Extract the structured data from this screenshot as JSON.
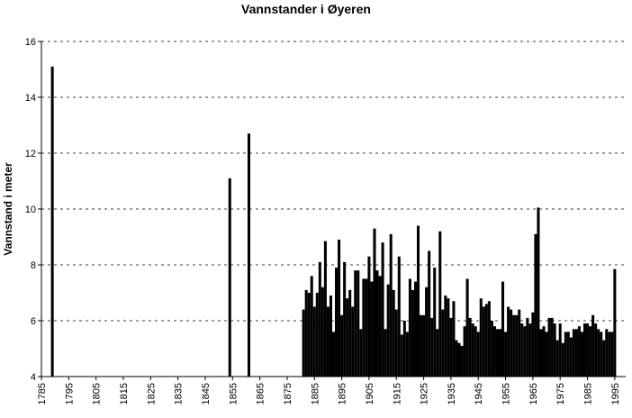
{
  "chart_data": {
    "type": "bar",
    "title": "Vannstander i Øyeren",
    "y_label": "Vannstand i meter",
    "x": [
      1789,
      1854,
      1861,
      1881,
      1882,
      1883,
      1884,
      1885,
      1886,
      1887,
      1888,
      1889,
      1890,
      1891,
      1892,
      1893,
      1894,
      1895,
      1896,
      1897,
      1898,
      1899,
      1900,
      1901,
      1902,
      1903,
      1904,
      1905,
      1906,
      1907,
      1908,
      1909,
      1910,
      1911,
      1912,
      1913,
      1914,
      1915,
      1916,
      1917,
      1918,
      1919,
      1920,
      1921,
      1922,
      1923,
      1924,
      1925,
      1926,
      1927,
      1928,
      1929,
      1930,
      1931,
      1932,
      1933,
      1934,
      1935,
      1936,
      1937,
      1938,
      1939,
      1940,
      1941,
      1942,
      1943,
      1944,
      1945,
      1946,
      1947,
      1948,
      1949,
      1950,
      1951,
      1952,
      1953,
      1954,
      1955,
      1956,
      1957,
      1958,
      1959,
      1960,
      1961,
      1962,
      1963,
      1964,
      1965,
      1966,
      1967,
      1968,
      1969,
      1970,
      1971,
      1972,
      1973,
      1974,
      1975,
      1976,
      1977,
      1978,
      1979,
      1980,
      1981,
      1982,
      1983,
      1984,
      1985,
      1986,
      1987,
      1988,
      1989,
      1990,
      1991,
      1992,
      1993,
      1994,
      1995
    ],
    "values": [
      15.1,
      11.1,
      12.7,
      6.4,
      7.1,
      7.0,
      7.6,
      6.5,
      7.0,
      8.1,
      7.2,
      8.85,
      6.5,
      6.9,
      5.6,
      7.9,
      8.9,
      6.2,
      8.1,
      6.8,
      7.1,
      6.5,
      7.8,
      7.8,
      5.7,
      7.5,
      7.5,
      8.3,
      7.4,
      9.3,
      7.8,
      7.6,
      8.8,
      5.7,
      7.3,
      9.1,
      7.1,
      6.4,
      8.3,
      5.5,
      6.0,
      5.6,
      7.5,
      7.1,
      7.4,
      9.4,
      6.2,
      6.2,
      7.2,
      8.5,
      6.1,
      7.9,
      5.7,
      9.2,
      6.4,
      6.9,
      6.8,
      6.1,
      6.7,
      5.3,
      5.2,
      5.1,
      5.8,
      7.5,
      6.1,
      5.9,
      5.8,
      5.6,
      6.8,
      6.5,
      6.6,
      6.7,
      6.0,
      5.8,
      5.7,
      5.7,
      7.4,
      5.6,
      6.5,
      6.4,
      6.2,
      6.2,
      6.4,
      5.9,
      5.8,
      6.1,
      5.9,
      6.3,
      9.1,
      10.05,
      5.7,
      5.8,
      5.6,
      6.1,
      6.1,
      5.9,
      5.3,
      5.9,
      5.2,
      5.6,
      5.6,
      5.4,
      5.7,
      5.7,
      5.8,
      5.6,
      5.9,
      5.9,
      5.8,
      6.2,
      5.9,
      5.7,
      5.6,
      5.3,
      5.7,
      5.6,
      5.6,
      7.85
    ],
    "color": "#000000",
    "xlim": [
      1785,
      1999
    ],
    "xticks": [
      1785,
      1795,
      1805,
      1815,
      1825,
      1835,
      1845,
      1855,
      1865,
      1875,
      1885,
      1895,
      1905,
      1915,
      1925,
      1935,
      1945,
      1955,
      1965,
      1975,
      1985,
      1995
    ],
    "ylim": [
      4,
      16
    ],
    "yticks": [
      4,
      6,
      8,
      10,
      12,
      14,
      16
    ],
    "grid": true
  }
}
